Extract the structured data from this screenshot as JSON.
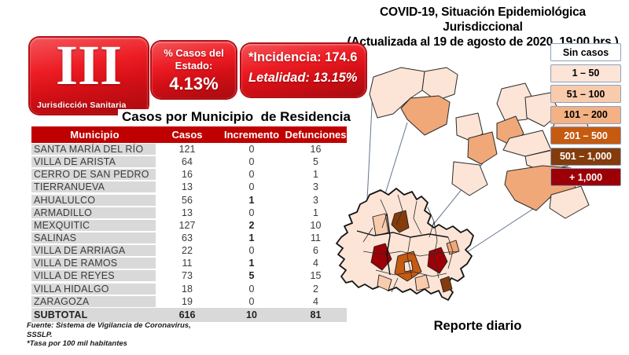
{
  "header": {
    "title_line1": "COVID-19, Situación Epidemiológica Jurisdiccional",
    "title_line2": "(Actualizada al 19 de agosto de 2020, 19:00 hrs.)"
  },
  "badge": {
    "numeral": "III",
    "label": "Jurisdicción Sanitaria"
  },
  "stats": {
    "percent_line1": "% Casos del",
    "percent_line2": "Estado:",
    "percent_value": "4.13%",
    "incidencia": "*Incidencia: 174.6",
    "letalidad": "Letalidad: 13.15%"
  },
  "table": {
    "title": "Casos por Municipio  de Residencia",
    "columns": [
      "Municipio",
      "Casos",
      "Incremento",
      "Defunciones"
    ],
    "rows": [
      {
        "municipio": "SANTA MARÍA DEL RÍO",
        "casos": "121",
        "incremento": "0",
        "defunciones": "16"
      },
      {
        "municipio": "VILLA DE ARISTA",
        "casos": "64",
        "incremento": "0",
        "defunciones": "5"
      },
      {
        "municipio": "CERRO DE SAN PEDRO",
        "casos": "16",
        "incremento": "0",
        "defunciones": "1"
      },
      {
        "municipio": "TIERRANUEVA",
        "casos": "13",
        "incremento": "0",
        "defunciones": "3"
      },
      {
        "municipio": "AHUALULCO",
        "casos": "56",
        "incremento": "1",
        "defunciones": "3"
      },
      {
        "municipio": "ARMADILLO",
        "casos": "13",
        "incremento": "0",
        "defunciones": "1"
      },
      {
        "municipio": "MEXQUITIC",
        "casos": "127",
        "incremento": "2",
        "defunciones": "10"
      },
      {
        "municipio": "SALINAS",
        "casos": "63",
        "incremento": "1",
        "defunciones": "11"
      },
      {
        "municipio": "VILLA DE ARRIAGA",
        "casos": "22",
        "incremento": "0",
        "defunciones": "6"
      },
      {
        "municipio": "VILLA DE RAMOS",
        "casos": "11",
        "incremento": "1",
        "defunciones": "4"
      },
      {
        "municipio": "VILLA DE REYES",
        "casos": "73",
        "incremento": "5",
        "defunciones": "15"
      },
      {
        "municipio": "VILLA HIDALGO",
        "casos": "18",
        "incremento": "0",
        "defunciones": "2"
      },
      {
        "municipio": "ZARAGOZA",
        "casos": "19",
        "incremento": "0",
        "defunciones": "4"
      }
    ],
    "subtotal": {
      "municipio": "SUBTOTAL",
      "casos": "616",
      "incremento": "10",
      "defunciones": "81"
    }
  },
  "footnotes": [
    "Fuente: Sistema de Vigilancia  de Coronavirus,",
    "SSSLP.",
    "*Tasa por 100 mil habitantes"
  ],
  "legend": {
    "items": [
      {
        "label": "Sin casos",
        "bg": "#ffffff",
        "fg": "#000000"
      },
      {
        "label": "1 – 50",
        "bg": "#fce4d6",
        "fg": "#000000"
      },
      {
        "label": "51 – 100",
        "bg": "#f8cbad",
        "fg": "#000000"
      },
      {
        "label": "101 – 200",
        "bg": "#f4b183",
        "fg": "#000000"
      },
      {
        "label": "201 – 500",
        "bg": "#c55a11",
        "fg": "#ffffff"
      },
      {
        "label": "501 – 1,000",
        "bg": "#843c0c",
        "fg": "#ffffff"
      },
      {
        "label": "+ 1,000",
        "bg": "#9c0006",
        "fg": "#ffffff"
      }
    ]
  },
  "map": {
    "caption": "Reporte diario",
    "accent_red": "#ed1c24",
    "header_red": "#c00000"
  }
}
